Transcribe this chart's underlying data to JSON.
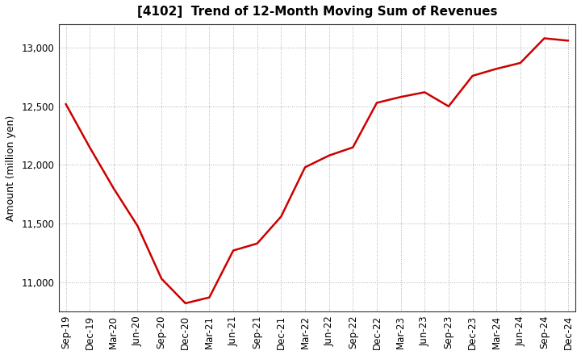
{
  "title": "[4102]  Trend of 12-Month Moving Sum of Revenues",
  "ylabel": "Amount (million yen)",
  "background_color": "#ffffff",
  "plot_bg_color": "#ffffff",
  "line_color": "#cc0000",
  "line_width": 1.8,
  "grid_color": "#999999",
  "ylim": [
    10750,
    13200
  ],
  "yticks": [
    11000,
    11500,
    12000,
    12500,
    13000
  ],
  "x_labels": [
    "Sep-19",
    "Dec-19",
    "Mar-20",
    "Jun-20",
    "Sep-20",
    "Dec-20",
    "Mar-21",
    "Jun-21",
    "Sep-21",
    "Dec-21",
    "Mar-22",
    "Jun-22",
    "Sep-22",
    "Dec-22",
    "Mar-23",
    "Jun-23",
    "Sep-23",
    "Dec-23",
    "Mar-24",
    "Jun-24",
    "Sep-24",
    "Dec-24"
  ],
  "values": [
    12520,
    12150,
    11800,
    11480,
    11030,
    10820,
    10870,
    11270,
    11330,
    11560,
    11980,
    12080,
    12150,
    12530,
    12580,
    12620,
    12500,
    12760,
    12820,
    12870,
    13080,
    13060
  ],
  "title_fontsize": 11,
  "ylabel_fontsize": 9,
  "tick_fontsize": 8.5
}
